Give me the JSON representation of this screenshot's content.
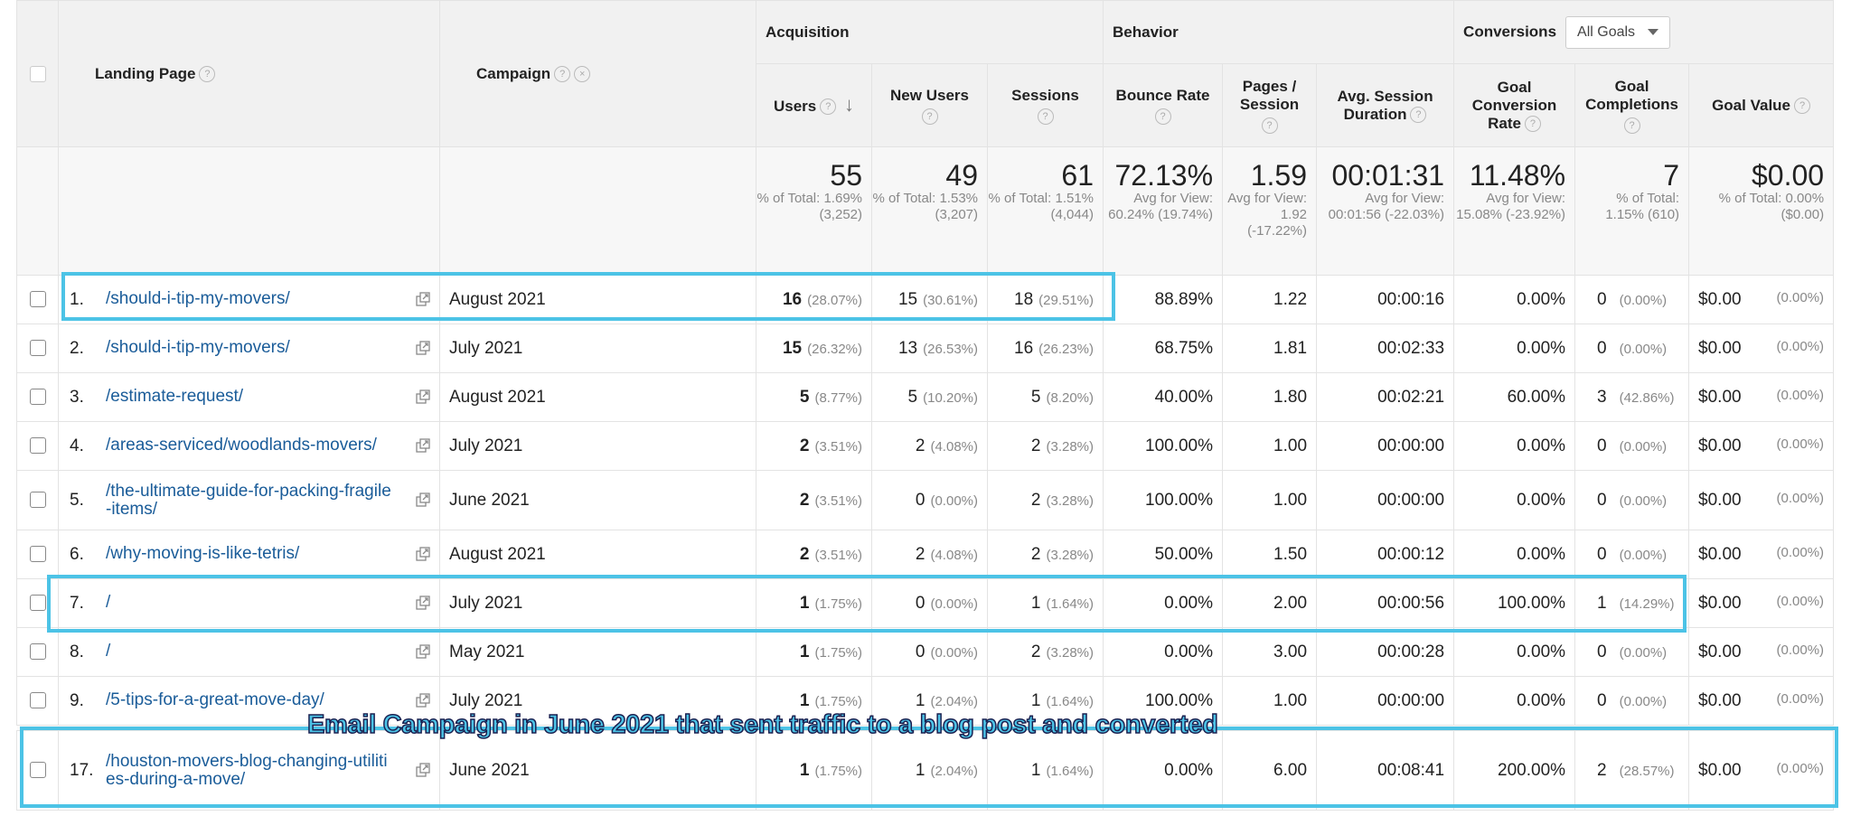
{
  "groups": {
    "acquisition": "Acquisition",
    "behavior": "Behavior",
    "conversions": "Conversions"
  },
  "goal_select": "All Goals",
  "headers": {
    "landing_page": "Landing Page",
    "campaign": "Campaign",
    "users": "Users",
    "new_users": "New Users",
    "sessions": "Sessions",
    "bounce_rate": "Bounce Rate",
    "pages_session": "Pages / Session",
    "avg_session": "Avg. Session Duration",
    "goal_conv": "Goal Conversion Rate",
    "goal_comp": "Goal Completions",
    "goal_value": "Goal Value"
  },
  "totals": {
    "users": {
      "v": "55",
      "s": "% of Total: 1.69% (3,252)"
    },
    "new_users": {
      "v": "49",
      "s": "% of Total: 1.53% (3,207)"
    },
    "sessions": {
      "v": "61",
      "s": "% of Total: 1.51% (4,044)"
    },
    "bounce": {
      "v": "72.13%",
      "s": "Avg for View: 60.24% (19.74%)"
    },
    "pages": {
      "v": "1.59",
      "s": "Avg for View: 1.92 (-17.22%)"
    },
    "duration": {
      "v": "00:01:31",
      "s": "Avg for View: 00:01:56 (-22.03%)"
    },
    "conv": {
      "v": "11.48%",
      "s": "Avg for View: 15.08% (-23.92%)"
    },
    "comp": {
      "v": "7",
      "s": "% of Total: 1.15% (610)"
    },
    "value": {
      "v": "$0.00",
      "s": "% of Total: 0.00% ($0.00)"
    }
  },
  "rows": [
    {
      "idx": "1.",
      "page": "/should-i-tip-my-movers/",
      "campaign": "August 2021",
      "users": "16",
      "users_p": "(28.07%)",
      "new_users": "15",
      "new_users_p": "(30.61%)",
      "sessions": "18",
      "sessions_p": "(29.51%)",
      "bounce": "88.89%",
      "pages": "1.22",
      "duration": "00:00:16",
      "conv": "0.00%",
      "comp": "0",
      "comp_p": "(0.00%)",
      "value": "$0.00",
      "value_p": "(0.00%)"
    },
    {
      "idx": "2.",
      "page": "/should-i-tip-my-movers/",
      "campaign": "July 2021",
      "users": "15",
      "users_p": "(26.32%)",
      "new_users": "13",
      "new_users_p": "(26.53%)",
      "sessions": "16",
      "sessions_p": "(26.23%)",
      "bounce": "68.75%",
      "pages": "1.81",
      "duration": "00:02:33",
      "conv": "0.00%",
      "comp": "0",
      "comp_p": "(0.00%)",
      "value": "$0.00",
      "value_p": "(0.00%)"
    },
    {
      "idx": "3.",
      "page": "/estimate-request/",
      "campaign": "August 2021",
      "users": "5",
      "users_p": "(8.77%)",
      "new_users": "5",
      "new_users_p": "(10.20%)",
      "sessions": "5",
      "sessions_p": "(8.20%)",
      "bounce": "40.00%",
      "pages": "1.80",
      "duration": "00:02:21",
      "conv": "60.00%",
      "comp": "3",
      "comp_p": "(42.86%)",
      "value": "$0.00",
      "value_p": "(0.00%)"
    },
    {
      "idx": "4.",
      "page": "/areas-serviced/woodlands-movers/",
      "campaign": "July 2021",
      "users": "2",
      "users_p": "(3.51%)",
      "new_users": "2",
      "new_users_p": "(4.08%)",
      "sessions": "2",
      "sessions_p": "(3.28%)",
      "bounce": "100.00%",
      "pages": "1.00",
      "duration": "00:00:00",
      "conv": "0.00%",
      "comp": "0",
      "comp_p": "(0.00%)",
      "value": "$0.00",
      "value_p": "(0.00%)"
    },
    {
      "idx": "5.",
      "page": "/the-ultimate-guide-for-packing-fragile-items/",
      "campaign": "June 2021",
      "users": "2",
      "users_p": "(3.51%)",
      "new_users": "0",
      "new_users_p": "(0.00%)",
      "sessions": "2",
      "sessions_p": "(3.28%)",
      "bounce": "100.00%",
      "pages": "1.00",
      "duration": "00:00:00",
      "conv": "0.00%",
      "comp": "0",
      "comp_p": "(0.00%)",
      "value": "$0.00",
      "value_p": "(0.00%)"
    },
    {
      "idx": "6.",
      "page": "/why-moving-is-like-tetris/",
      "campaign": "August 2021",
      "users": "2",
      "users_p": "(3.51%)",
      "new_users": "2",
      "new_users_p": "(4.08%)",
      "sessions": "2",
      "sessions_p": "(3.28%)",
      "bounce": "50.00%",
      "pages": "1.50",
      "duration": "00:00:12",
      "conv": "0.00%",
      "comp": "0",
      "comp_p": "(0.00%)",
      "value": "$0.00",
      "value_p": "(0.00%)"
    },
    {
      "idx": "7.",
      "page": "/",
      "campaign": "July 2021",
      "users": "1",
      "users_p": "(1.75%)",
      "new_users": "0",
      "new_users_p": "(0.00%)",
      "sessions": "1",
      "sessions_p": "(1.64%)",
      "bounce": "0.00%",
      "pages": "2.00",
      "duration": "00:00:56",
      "conv": "100.00%",
      "comp": "1",
      "comp_p": "(14.29%)",
      "value": "$0.00",
      "value_p": "(0.00%)"
    },
    {
      "idx": "8.",
      "page": "/",
      "campaign": "May 2021",
      "users": "1",
      "users_p": "(1.75%)",
      "new_users": "0",
      "new_users_p": "(0.00%)",
      "sessions": "2",
      "sessions_p": "(3.28%)",
      "bounce": "0.00%",
      "pages": "3.00",
      "duration": "00:00:28",
      "conv": "0.00%",
      "comp": "0",
      "comp_p": "(0.00%)",
      "value": "$0.00",
      "value_p": "(0.00%)"
    },
    {
      "idx": "9.",
      "page": "/5-tips-for-a-great-move-day/",
      "campaign": "July 2021",
      "users": "1",
      "users_p": "(1.75%)",
      "new_users": "1",
      "new_users_p": "(2.04%)",
      "sessions": "1",
      "sessions_p": "(1.64%)",
      "bounce": "100.00%",
      "pages": "1.00",
      "duration": "00:00:00",
      "conv": "0.00%",
      "comp": "0",
      "comp_p": "(0.00%)",
      "value": "$0.00",
      "value_p": "(0.00%)"
    },
    {
      "idx": "17.",
      "page": "/houston-movers-blog-changing-utilities-during-a-move/",
      "campaign": "June 2021",
      "users": "1",
      "users_p": "(1.75%)",
      "new_users": "1",
      "new_users_p": "(2.04%)",
      "sessions": "1",
      "sessions_p": "(1.64%)",
      "bounce": "0.00%",
      "pages": "6.00",
      "duration": "00:08:41",
      "conv": "200.00%",
      "comp": "2",
      "comp_p": "(28.57%)",
      "value": "$0.00",
      "value_p": "(0.00%)"
    }
  ],
  "caption": "Email Campaign in June 2021 that sent traffic to a blog post and converted",
  "colors": {
    "highlight": "#4cc3e6",
    "link": "#1a5c99"
  }
}
